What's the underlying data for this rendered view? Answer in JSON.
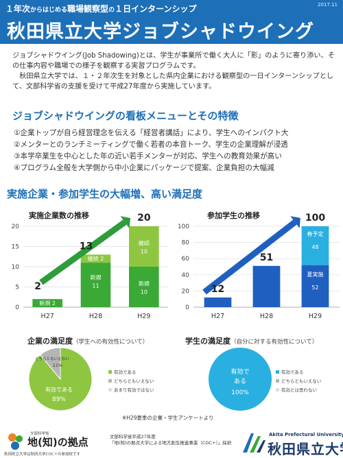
{
  "header": {
    "subtitle_prefix": "１年次",
    "subtitle_small1": "からはじめる",
    "subtitle_mid": "職場観察型",
    "subtitle_small2": "の",
    "subtitle_suffix": "１日インターンシップ",
    "date": "2017.11",
    "title": "秋田県立大学ジョブシャドウイング"
  },
  "intro": {
    "paragraph1": "ジョブシャドウイング(Job Shadowing)とは、学生が事業所で働く大人に「影」のように寄り添い、その仕事内容や職場での様子を観察する実習プログラムです。",
    "paragraph2": "秋田県立大学では、１・２年次生を対象とした県内企業における観察型の一日インターンシップとして、文部科学省の支援を受けて平成27年度から実施しています。"
  },
  "menu": {
    "title": "ジョブシャドウイングの看板メニューとその特徴",
    "items": [
      "①企業トップが自ら経営理念を伝える「経営者講話」により、学生へのインパクト大",
      "②メンターとのランチミーティングで働く若者の本音トーク、学生の企業理解が浸透",
      "③本学卒業生を中心とした年の近い若手メンターが対応、学生への教育効果が高い",
      "④プログラム全般を大学側から中小企業にパッケージで提案、企業負担の大幅減"
    ]
  },
  "stats_title": "実施企業・参加学生の大幅増、高い満足度",
  "companies_chart": {
    "title": "実施企業数の推移",
    "y_ticks": [
      "0",
      "5",
      "10",
      "15",
      "20"
    ],
    "categories": [
      "H27",
      "H28",
      "H29"
    ],
    "totals": [
      "2",
      "13",
      "20"
    ],
    "seg_labels": [
      "新規 2",
      "新規\n11",
      "継続 2",
      "新規\n10",
      "継続\n10"
    ]
  },
  "students_chart": {
    "title": "参加学生の推移",
    "y_ticks": [
      "0",
      "20",
      "40",
      "60",
      "80",
      "100"
    ],
    "categories": [
      "H27",
      "H28",
      "H29"
    ],
    "totals": [
      "12",
      "51",
      "100"
    ],
    "seg_top_label": "春予定",
    "seg_top_value": "48",
    "seg_bottom_label": "夏実施",
    "seg_bottom_value": "52"
  },
  "company_satisfaction": {
    "title": "企業の満足度",
    "subtitle": "（学生への有効性について）",
    "slice_main_label": "有効である",
    "slice_main_value": "89%",
    "slice_small_label": "どちらともいえない",
    "slice_small_value": "11%",
    "legend": [
      "有効である",
      "どちらともいえない",
      "あまり有効ではない"
    ]
  },
  "student_satisfaction": {
    "title": "学生の満足度",
    "subtitle": "（自分に対する有効性について）",
    "slice_main_label_1": "有効で",
    "slice_main_label_2": "ある",
    "slice_main_value": "100%",
    "legend": [
      "有効である",
      "どちらともいえない",
      "有効とは思わない"
    ]
  },
  "survey_note": "※H29夏季の企業・学生アンケートより",
  "footer": {
    "left_small": "文部科学省",
    "left_logo": "地(知)の拠点",
    "left_caption": "秋田県立大学は秋田大学COC＋の参加校です",
    "center_line1": "文部科学省平成27年度",
    "center_line2": "「地(知)の拠点大学による地方創生推進事業（COC+）」採択",
    "right_en": "Akita Prefectural University",
    "right_jp": "秋田県立大学"
  },
  "colors": {
    "header_blue": "#1d6fb8",
    "green_dark": "#3aa935",
    "green_light": "#8ec641",
    "blue_dark": "#1f5fc0",
    "blue_light": "#2ab0e0",
    "arrow_green": "#2e9c3a"
  },
  "chart_data": [
    {
      "type": "bar",
      "title": "実施企業数の推移",
      "categories": [
        "H27",
        "H28",
        "H29"
      ],
      "series": [
        {
          "name": "新規",
          "values": [
            2,
            11,
            10
          ]
        },
        {
          "name": "継続",
          "values": [
            0,
            2,
            10
          ]
        }
      ],
      "totals": [
        2,
        13,
        20
      ],
      "ylim": [
        0,
        20
      ]
    },
    {
      "type": "bar",
      "title": "参加学生の推移",
      "categories": [
        "H27",
        "H28",
        "H29"
      ],
      "series": [
        {
          "name": "夏実施",
          "values": [
            12,
            51,
            52
          ]
        },
        {
          "name": "春予定",
          "values": [
            0,
            0,
            48
          ]
        }
      ],
      "totals": [
        12,
        51,
        100
      ],
      "ylim": [
        0,
        100
      ]
    },
    {
      "type": "pie",
      "title": "企業の満足度",
      "labels": [
        "有効である",
        "どちらともいえない",
        "あまり有効ではない"
      ],
      "values": [
        89,
        11,
        0
      ]
    },
    {
      "type": "pie",
      "title": "学生の満足度",
      "labels": [
        "有効である",
        "どちらともいえない",
        "有効とは思わない"
      ],
      "values": [
        100,
        0,
        0
      ]
    }
  ]
}
